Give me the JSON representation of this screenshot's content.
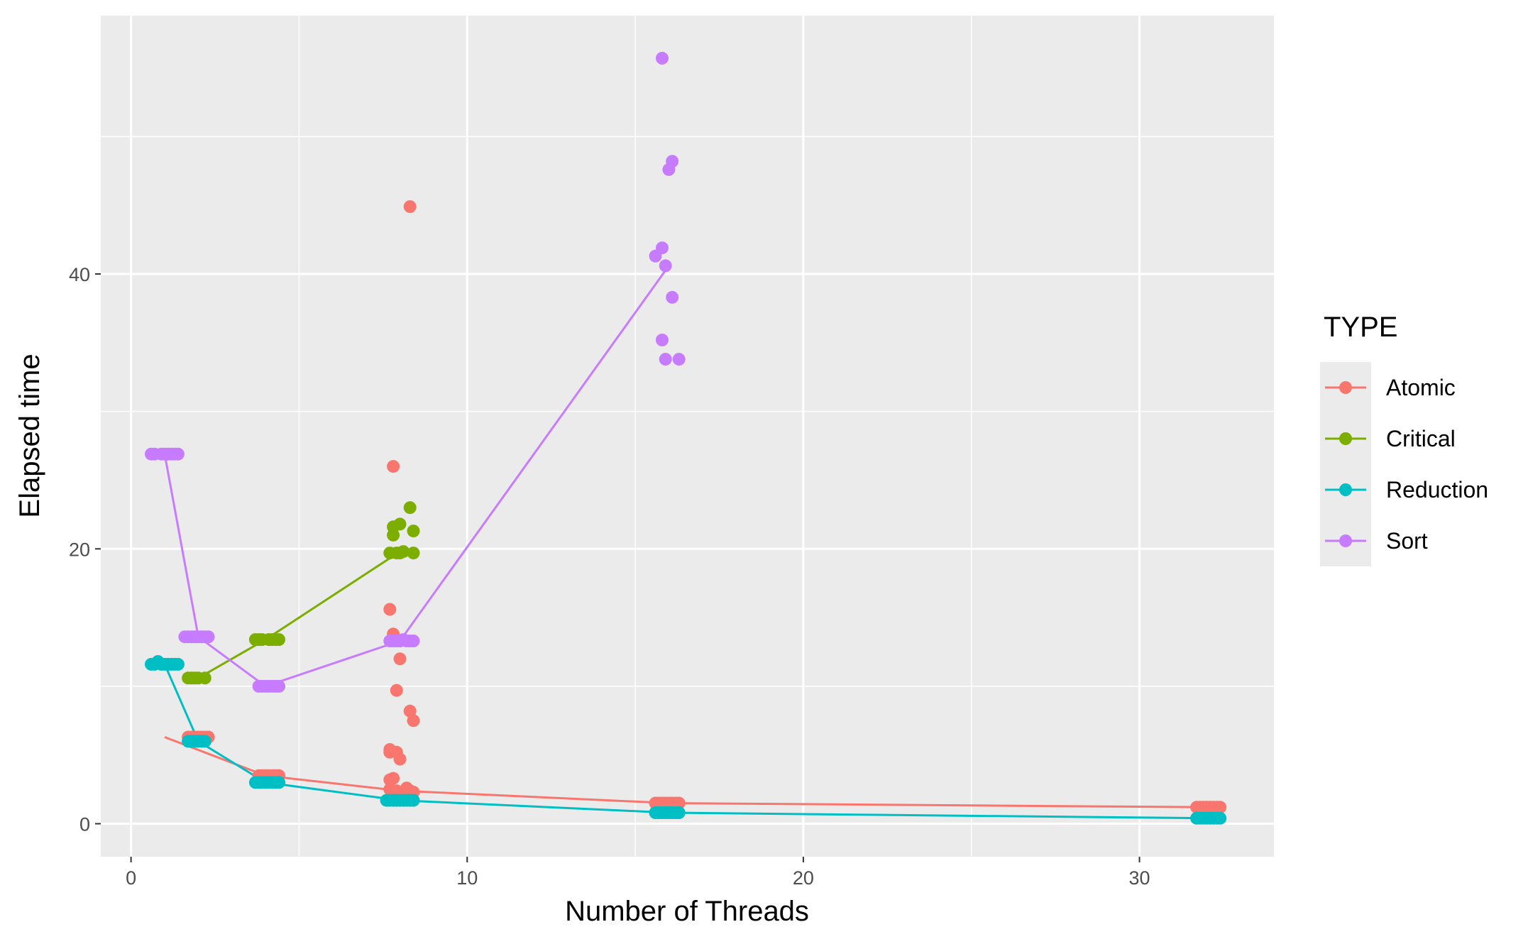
{
  "chart_data": {
    "type": "scatter",
    "xlabel": "Number of Threads",
    "ylabel": "Elapsed time",
    "xlim": [
      -0.9,
      34.0
    ],
    "ylim": [
      -2.4,
      58.8
    ],
    "x_ticks": [
      0,
      10,
      20,
      30
    ],
    "y_ticks": [
      0,
      20,
      40
    ],
    "grid": true,
    "legend": {
      "title": "TYPE",
      "position": "right"
    },
    "series": [
      {
        "name": "Atomic",
        "color": "#F8766D",
        "line": [
          [
            1,
            6.3
          ],
          [
            4,
            3.5
          ],
          [
            8,
            2.4
          ],
          [
            16,
            1.5
          ],
          [
            32,
            1.2
          ]
        ],
        "points": [
          [
            1.7,
            6.3
          ],
          [
            1.8,
            6.3
          ],
          [
            1.9,
            6.3
          ],
          [
            2.0,
            6.3
          ],
          [
            2.1,
            6.3
          ],
          [
            2.2,
            6.3
          ],
          [
            2.3,
            6.3
          ],
          [
            3.8,
            3.5
          ],
          [
            3.9,
            3.5
          ],
          [
            4.0,
            3.5
          ],
          [
            4.1,
            3.5
          ],
          [
            4.2,
            3.5
          ],
          [
            4.3,
            3.5
          ],
          [
            4.4,
            3.5
          ],
          [
            7.8,
            26.0
          ],
          [
            7.7,
            15.6
          ],
          [
            7.8,
            13.8
          ],
          [
            8.0,
            12.0
          ],
          [
            7.9,
            9.7
          ],
          [
            8.3,
            8.2
          ],
          [
            8.4,
            7.5
          ],
          [
            7.7,
            5.4
          ],
          [
            7.7,
            5.2
          ],
          [
            7.9,
            5.2
          ],
          [
            8.0,
            4.7
          ],
          [
            7.8,
            3.3
          ],
          [
            7.7,
            3.2
          ],
          [
            8.2,
            2.6
          ],
          [
            7.7,
            2.5
          ],
          [
            7.9,
            2.4
          ],
          [
            8.1,
            2.3
          ],
          [
            8.3,
            2.4
          ],
          [
            8.4,
            2.3
          ],
          [
            8.3,
            44.9
          ],
          [
            15.6,
            1.5
          ],
          [
            15.7,
            1.5
          ],
          [
            15.8,
            1.5
          ],
          [
            15.9,
            1.5
          ],
          [
            16.0,
            1.5
          ],
          [
            16.1,
            1.5
          ],
          [
            16.2,
            1.5
          ],
          [
            16.3,
            1.5
          ],
          [
            31.7,
            1.2
          ],
          [
            31.8,
            1.2
          ],
          [
            31.9,
            1.2
          ],
          [
            32.0,
            1.2
          ],
          [
            32.1,
            1.2
          ],
          [
            32.2,
            1.2
          ],
          [
            32.3,
            1.2
          ],
          [
            32.4,
            1.2
          ]
        ]
      },
      {
        "name": "Critical",
        "color": "#7CAE00",
        "line": [
          [
            2,
            10.6
          ],
          [
            4,
            13.4
          ],
          [
            8,
            19.8
          ]
        ],
        "points": [
          [
            1.7,
            10.6
          ],
          [
            1.8,
            10.6
          ],
          [
            1.9,
            10.6
          ],
          [
            2.0,
            10.6
          ],
          [
            2.2,
            10.6
          ],
          [
            3.7,
            13.4
          ],
          [
            3.8,
            13.4
          ],
          [
            3.9,
            13.4
          ],
          [
            4.1,
            13.4
          ],
          [
            4.2,
            13.4
          ],
          [
            4.3,
            13.4
          ],
          [
            4.4,
            13.4
          ],
          [
            7.7,
            19.7
          ],
          [
            7.8,
            21.6
          ],
          [
            7.8,
            21.0
          ],
          [
            7.9,
            19.7
          ],
          [
            8.0,
            21.8
          ],
          [
            8.0,
            19.7
          ],
          [
            8.1,
            19.8
          ],
          [
            8.3,
            23.0
          ],
          [
            8.4,
            21.3
          ],
          [
            8.4,
            19.7
          ]
        ]
      },
      {
        "name": "Reduction",
        "color": "#00BFC4",
        "line": [
          [
            1,
            11.6
          ],
          [
            2,
            6.0
          ],
          [
            4,
            3.0
          ],
          [
            8,
            1.7
          ],
          [
            16,
            0.8
          ],
          [
            32,
            0.4
          ]
        ],
        "points": [
          [
            0.6,
            11.6
          ],
          [
            0.7,
            11.6
          ],
          [
            0.8,
            11.8
          ],
          [
            0.9,
            11.6
          ],
          [
            1.0,
            11.6
          ],
          [
            1.1,
            11.6
          ],
          [
            1.2,
            11.6
          ],
          [
            1.3,
            11.6
          ],
          [
            1.4,
            11.6
          ],
          [
            1.7,
            6.0
          ],
          [
            1.8,
            6.0
          ],
          [
            1.9,
            6.0
          ],
          [
            2.0,
            6.0
          ],
          [
            2.1,
            6.0
          ],
          [
            2.2,
            6.0
          ],
          [
            3.7,
            3.0
          ],
          [
            3.8,
            3.0
          ],
          [
            3.9,
            3.0
          ],
          [
            4.0,
            3.0
          ],
          [
            4.1,
            3.0
          ],
          [
            4.2,
            3.0
          ],
          [
            4.3,
            3.0
          ],
          [
            4.4,
            3.0
          ],
          [
            7.6,
            1.7
          ],
          [
            7.7,
            1.7
          ],
          [
            7.8,
            1.7
          ],
          [
            7.9,
            1.7
          ],
          [
            8.0,
            1.7
          ],
          [
            8.1,
            1.7
          ],
          [
            8.2,
            1.7
          ],
          [
            8.3,
            1.7
          ],
          [
            8.4,
            1.7
          ],
          [
            15.6,
            0.8
          ],
          [
            15.7,
            0.8
          ],
          [
            15.8,
            0.8
          ],
          [
            15.9,
            0.8
          ],
          [
            16.0,
            0.8
          ],
          [
            16.1,
            0.8
          ],
          [
            16.2,
            0.8
          ],
          [
            16.3,
            0.8
          ],
          [
            31.7,
            0.4
          ],
          [
            31.8,
            0.4
          ],
          [
            31.9,
            0.4
          ],
          [
            32.0,
            0.4
          ],
          [
            32.1,
            0.4
          ],
          [
            32.2,
            0.4
          ],
          [
            32.3,
            0.4
          ],
          [
            32.4,
            0.4
          ]
        ]
      },
      {
        "name": "Sort",
        "color": "#C77CFF",
        "line": [
          [
            1,
            26.9
          ],
          [
            2,
            13.6
          ],
          [
            4,
            10.0
          ],
          [
            8,
            13.3
          ],
          [
            16,
            40.6
          ]
        ],
        "points": [
          [
            0.6,
            26.9
          ],
          [
            0.7,
            26.9
          ],
          [
            0.9,
            26.9
          ],
          [
            1.0,
            26.9
          ],
          [
            1.1,
            26.9
          ],
          [
            1.2,
            26.9
          ],
          [
            1.3,
            26.9
          ],
          [
            1.4,
            26.9
          ],
          [
            1.6,
            13.6
          ],
          [
            1.7,
            13.6
          ],
          [
            1.8,
            13.6
          ],
          [
            1.9,
            13.6
          ],
          [
            2.0,
            13.6
          ],
          [
            2.1,
            13.6
          ],
          [
            2.2,
            13.6
          ],
          [
            2.3,
            13.6
          ],
          [
            3.8,
            10.0
          ],
          [
            3.9,
            10.0
          ],
          [
            4.0,
            10.0
          ],
          [
            4.1,
            10.0
          ],
          [
            4.2,
            10.0
          ],
          [
            4.3,
            10.0
          ],
          [
            4.4,
            10.0
          ],
          [
            7.7,
            13.3
          ],
          [
            7.8,
            13.3
          ],
          [
            7.9,
            13.3
          ],
          [
            8.0,
            13.3
          ],
          [
            8.1,
            13.4
          ],
          [
            8.2,
            13.3
          ],
          [
            8.3,
            13.3
          ],
          [
            8.4,
            13.3
          ],
          [
            15.8,
            55.7
          ],
          [
            16.1,
            48.2
          ],
          [
            16.0,
            47.6
          ],
          [
            15.8,
            41.9
          ],
          [
            15.6,
            41.3
          ],
          [
            15.9,
            40.6
          ],
          [
            16.1,
            38.3
          ],
          [
            15.8,
            35.2
          ],
          [
            15.9,
            33.8
          ],
          [
            16.3,
            33.8
          ]
        ]
      }
    ]
  }
}
